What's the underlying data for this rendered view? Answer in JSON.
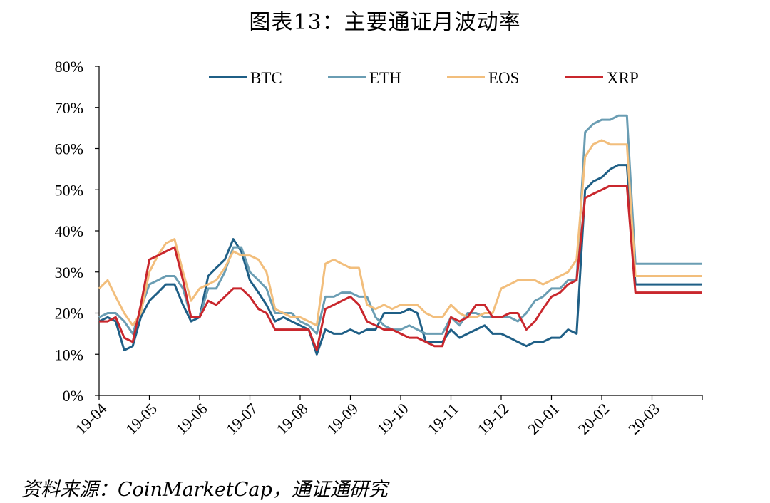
{
  "title": "图表13：主要通证月波动率",
  "source": "资料来源：CoinMarketCap，通证通研究",
  "colors": {
    "BTC": "#1f5f86",
    "ETH": "#6a9db3",
    "EOS": "#f2be7c",
    "XRP": "#c9272d"
  },
  "chart_data": {
    "type": "line",
    "title": "图表13：主要通证月波动率",
    "xlabel": "",
    "ylabel": "",
    "ylim": [
      0,
      80
    ],
    "y_unit": "%",
    "y_ticks": [
      "0%",
      "10%",
      "20%",
      "30%",
      "40%",
      "50%",
      "60%",
      "70%",
      "80%"
    ],
    "x_ticks": [
      "19-04",
      "19-05",
      "19-06",
      "19-07",
      "19-08",
      "19-09",
      "19-10",
      "19-11",
      "19-12",
      "20-01",
      "20-02",
      "20-03"
    ],
    "x_range": [
      "19-04",
      "20-03 end"
    ],
    "legend_position": "top",
    "grid": false,
    "x": [
      0,
      0.17,
      0.33,
      0.5,
      0.67,
      0.83,
      1,
      1.17,
      1.33,
      1.5,
      1.67,
      1.83,
      2,
      2.17,
      2.33,
      2.5,
      2.67,
      2.83,
      3,
      3.17,
      3.33,
      3.5,
      3.67,
      3.83,
      4,
      4.17,
      4.33,
      4.5,
      4.67,
      4.83,
      5,
      5.17,
      5.33,
      5.5,
      5.67,
      5.83,
      6,
      6.17,
      6.33,
      6.5,
      6.67,
      6.83,
      7,
      7.17,
      7.33,
      7.5,
      7.67,
      7.83,
      8,
      8.17,
      8.33,
      8.5,
      8.67,
      8.83,
      9,
      9.17,
      9.33,
      9.5,
      9.67,
      9.83,
      10,
      10.17,
      10.33,
      10.5,
      10.67,
      10.83,
      11,
      11.17,
      11.33,
      11.5,
      11.67,
      11.83,
      12
    ],
    "series": [
      {
        "name": "BTC",
        "values": [
          18,
          19,
          18,
          11,
          12,
          19,
          23,
          25,
          27,
          27,
          22,
          18,
          19,
          29,
          31,
          33,
          38,
          35,
          28,
          25,
          22,
          18,
          19,
          18,
          17,
          16,
          10,
          16,
          15,
          15,
          16,
          15,
          16,
          16,
          20,
          20,
          20,
          21,
          20,
          13,
          13,
          13,
          16,
          14,
          15,
          16,
          17,
          15,
          15,
          14,
          13,
          12,
          13,
          13,
          14,
          14,
          16,
          15,
          50,
          52,
          53,
          55,
          56,
          56,
          27,
          27,
          27,
          27,
          27,
          27,
          27,
          27,
          27
        ]
      },
      {
        "name": "ETH",
        "values": [
          19,
          20,
          20,
          18,
          15,
          21,
          27,
          28,
          29,
          29,
          26,
          19,
          19,
          26,
          26,
          30,
          36,
          36,
          30,
          28,
          26,
          20,
          20,
          20,
          18,
          17,
          15,
          24,
          24,
          25,
          25,
          24,
          24,
          19,
          17,
          16,
          16,
          17,
          16,
          15,
          15,
          15,
          19,
          17,
          20,
          20,
          19,
          19,
          19,
          19,
          18,
          20,
          23,
          24,
          26,
          26,
          28,
          28,
          64,
          66,
          67,
          67,
          68,
          68,
          32,
          32,
          32,
          32,
          32,
          32,
          32,
          32,
          32
        ]
      },
      {
        "name": "EOS",
        "values": [
          26,
          28,
          24,
          20,
          17,
          20,
          30,
          34,
          37,
          38,
          30,
          23,
          26,
          27,
          28,
          31,
          35,
          34,
          34,
          33,
          30,
          21,
          20,
          19,
          19,
          18,
          17,
          32,
          33,
          32,
          31,
          31,
          22,
          21,
          22,
          21,
          22,
          22,
          22,
          20,
          19,
          19,
          22,
          20,
          19,
          19,
          20,
          20,
          26,
          27,
          28,
          28,
          28,
          27,
          28,
          29,
          30,
          33,
          58,
          61,
          62,
          61,
          61,
          61,
          29,
          29,
          29,
          29,
          29,
          29,
          29,
          29,
          29
        ]
      },
      {
        "name": "XRP",
        "values": [
          18,
          18,
          19,
          14,
          13,
          22,
          33,
          34,
          35,
          36,
          28,
          19,
          19,
          23,
          22,
          24,
          26,
          26,
          24,
          21,
          20,
          16,
          16,
          16,
          16,
          16,
          11,
          21,
          22,
          23,
          24,
          22,
          18,
          17,
          16,
          16,
          15,
          14,
          14,
          13,
          12,
          12,
          19,
          18,
          19,
          22,
          22,
          19,
          19,
          20,
          20,
          16,
          18,
          21,
          24,
          25,
          27,
          28,
          48,
          49,
          50,
          51,
          51,
          51,
          25,
          25,
          25,
          25,
          25,
          25,
          25,
          25,
          25
        ]
      }
    ]
  }
}
